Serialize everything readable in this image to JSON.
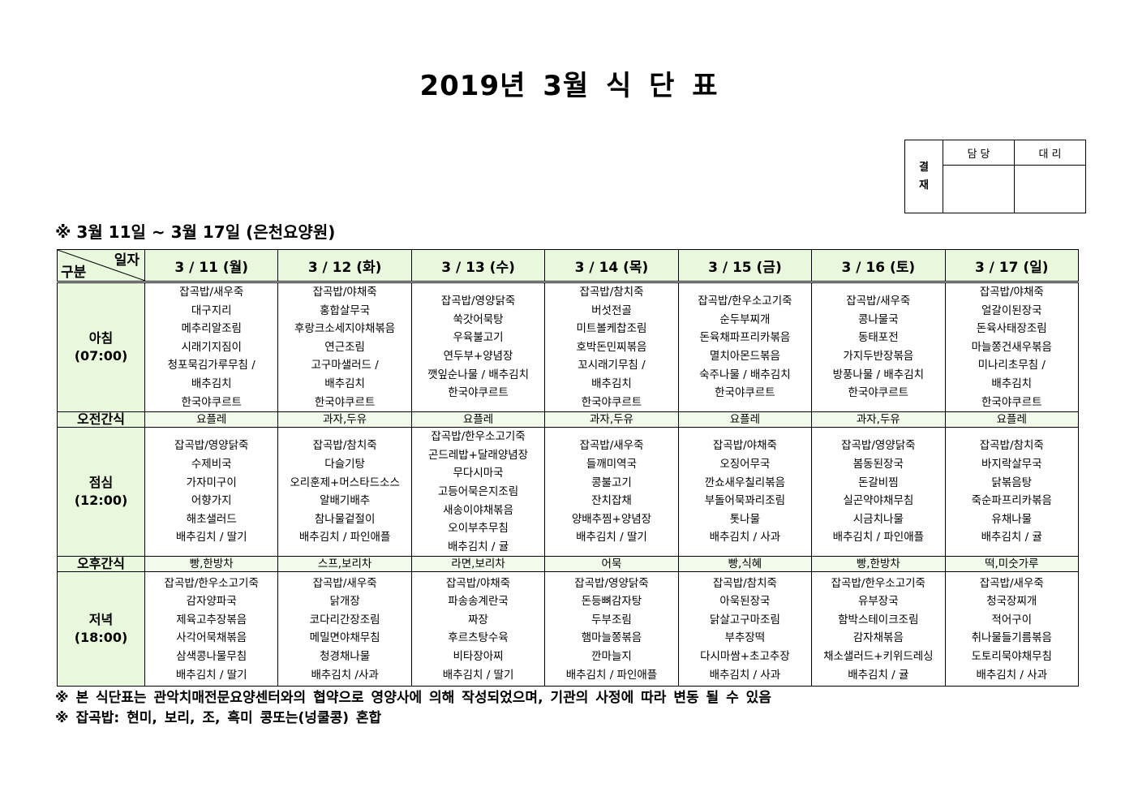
{
  "title": "2019년 3월 식 단 표",
  "approval": {
    "label": "결\n재",
    "label_lines": [
      "결",
      "재"
    ],
    "col1": "담 당",
    "col2": "대 리"
  },
  "subtitle": "※ 3월 11일 ~ 3월 17일 (은천요양원)",
  "corner": {
    "top": "일자",
    "bottom": "구분"
  },
  "days": [
    "3 / 11 (월)",
    "3 / 12 (화)",
    "3 / 13 (수)",
    "3 / 14 (목)",
    "3 / 15 (금)",
    "3 / 16 (토)",
    "3 / 17 (일)"
  ],
  "rows": [
    {
      "type": "meal",
      "label": "아침",
      "time": "(07:00)",
      "cells": [
        [
          "잡곡밥/새우죽",
          "대구지리",
          "메추리알조림",
          "시래기지짐이",
          "청포묵김가루무침 /",
          "배추김치",
          "한국야쿠르트"
        ],
        [
          "잡곡밥/야채죽",
          "홍합살무국",
          "후랑크소세지야채볶음",
          "연근조림",
          "고구마샐러드 /",
          "배추김치",
          "한국야쿠르트"
        ],
        [
          "잡곡밥/영양닭죽",
          "쑥갓어묵탕",
          "우육불고기",
          "연두부+양념장",
          "깻잎순나물 / 배추김치",
          "한국야쿠르트"
        ],
        [
          "잡곡밥/참치죽",
          "버섯전골",
          "미트볼케찹조림",
          "호박돈민찌볶음",
          "꼬시래기무침 /",
          "배추김치",
          "한국야쿠르트"
        ],
        [
          "잡곡밥/한우소고기죽",
          "순두부찌개",
          "돈육채파프리카볶음",
          "멸치아몬드볶음",
          "숙주나물 / 배추김치",
          "한국야쿠르트"
        ],
        [
          "잡곡밥/새우죽",
          "콩나물국",
          "동태포전",
          "가지두반장볶음",
          "방풍나물 / 배추김치",
          "한국야쿠르트"
        ],
        [
          "잡곡밥/야채죽",
          "얼갈이된장국",
          "돈육사태장조림",
          "마늘쫑건새우볶음",
          "미나리초무침 /",
          "배추김치",
          "한국야쿠르트"
        ]
      ]
    },
    {
      "type": "snack",
      "label": "오전간식",
      "cells": [
        "요플레",
        "과자,두유",
        "요플레",
        "과자,두유",
        "요플레",
        "과자,두유",
        "요플레"
      ]
    },
    {
      "type": "meal",
      "label": "점심",
      "time": "(12:00)",
      "cells": [
        [
          "잡곡밥/영양닭죽",
          "수제비국",
          "가자미구이",
          "어향가지",
          "해초샐러드",
          "배추김치 / 딸기"
        ],
        [
          "잡곡밥/참치죽",
          "다슬기탕",
          "오리훈제+머스타드소스",
          "알배기배추",
          "참나물겉절이",
          "배추김치 / 파인애플"
        ],
        [
          "잡곡밥/한우소고기죽",
          "곤드레밥+달래양념장",
          "무다시마국",
          "고등어묵은지조림",
          "새송이야채볶음",
          "오이부추무침",
          "배추김치 / 귤"
        ],
        [
          "잡곡밥/새우죽",
          "들깨미역국",
          "콩불고기",
          "잔치잡채",
          "양배추찜+양념장",
          "배추김치 / 딸기"
        ],
        [
          "잡곡밥/야채죽",
          "오징어무국",
          "깐쇼새우칠리볶음",
          "부돌어묵꽈리조림",
          "톳나물",
          "배추김치 / 사과"
        ],
        [
          "잡곡밥/영양닭죽",
          "봄동된장국",
          "돈갈비찜",
          "실곤약야채무침",
          "시금치나물",
          "배추김치 / 파인애플"
        ],
        [
          "잡곡밥/참치죽",
          "바지락살무국",
          "닭볶음탕",
          "죽순파프리카볶음",
          "유채나물",
          "배추김치 / 귤"
        ]
      ]
    },
    {
      "type": "snack",
      "label": "오후간식",
      "cells": [
        "빵,한방차",
        "스프,보리차",
        "라면,보리차",
        "어묵",
        "빵,식혜",
        "빵,한방차",
        "떡,미숫가루"
      ]
    },
    {
      "type": "meal",
      "label": "저녁",
      "time": "(18:00)",
      "cells": [
        [
          "잡곡밥/한우소고기죽",
          "감자양파국",
          "제육고추장볶음",
          "사각어묵채볶음",
          "삼색콩나물무침",
          "배추김치 / 딸기"
        ],
        [
          "잡곡밥/새우죽",
          "닭개장",
          "코다리간장조림",
          "메밀면야채무침",
          "청경채나물",
          "배추김치 /사과"
        ],
        [
          "잡곡밥/야채죽",
          "파송송계란국",
          "짜장",
          "후르츠탕수육",
          "비타장아찌",
          "배추김치 / 딸기"
        ],
        [
          "잡곡밥/영양닭죽",
          "돈등뼈감자탕",
          "두부조림",
          "햄마늘쫑볶음",
          "깐마늘지",
          "배추김치 / 파인애플"
        ],
        [
          "잡곡밥/참치죽",
          "아욱된장국",
          "닭살고구마조림",
          "부추장떡",
          "다시마쌈+초고추장",
          "배추김치 / 사과"
        ],
        [
          "잡곡밥/한우소고기죽",
          "유부장국",
          "함박스테이크조림",
          "감자채볶음",
          "채소샐러드+키위드레싱",
          "배추김치 / 귤"
        ],
        [
          "잡곡밥/새우죽",
          "청국장찌개",
          "적어구이",
          "취나물들기름볶음",
          "도토리묵야채무침",
          "배추김치 / 사과"
        ]
      ]
    }
  ],
  "notes": [
    "※ 본 식단표는 관악치매전문요양센터와의 협약으로 영양사에 의해 작성되었으며, 기관의 사정에 따라 변동 될 수 있음",
    "※ 잡곡밥: 현미, 보리, 조, 흑미 콩또는(넝쿨콩) 혼합"
  ],
  "colors": {
    "header_bg": "#e9f7dc",
    "snack_bg": "#f2faec"
  }
}
